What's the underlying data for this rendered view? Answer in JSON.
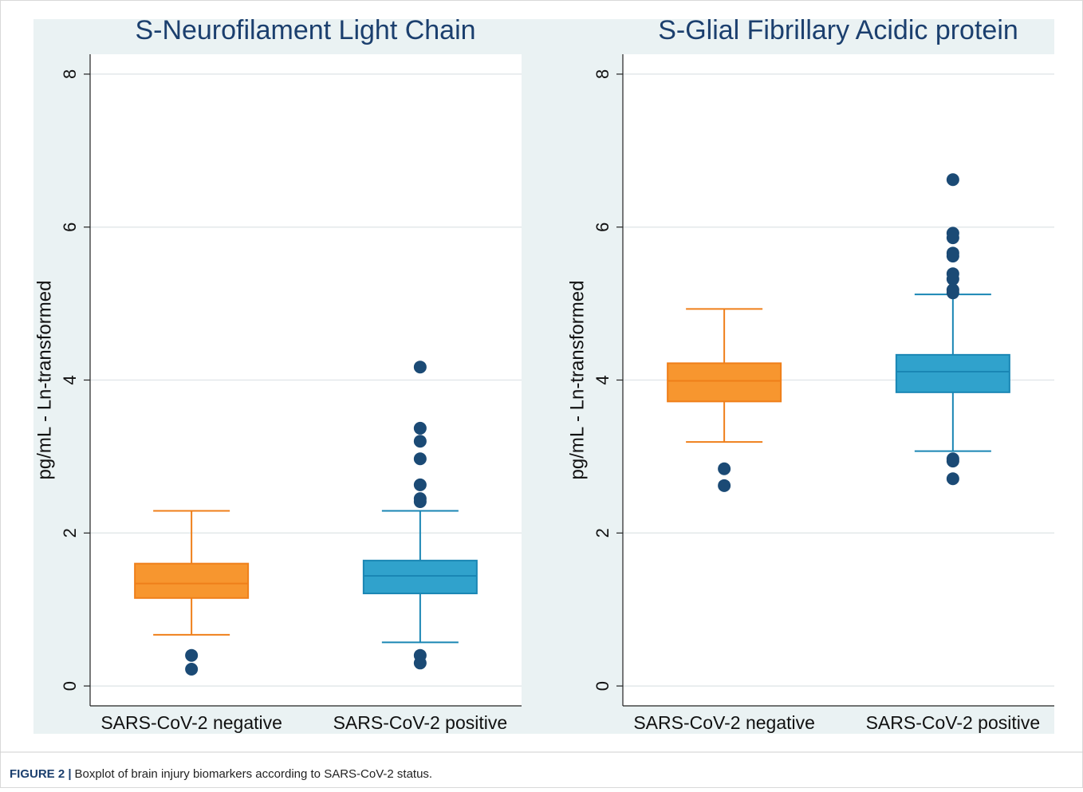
{
  "chart_data": [
    {
      "type": "box",
      "title": "S-Neurofilament Light Chain",
      "ylabel": "pg/mL - Ln-transformed",
      "categories": [
        "SARS-CoV-2 negative",
        "SARS-CoV-2 positive"
      ],
      "ylim": [
        -0.26,
        8.26
      ],
      "yticks": [
        0,
        2,
        4,
        6,
        8
      ],
      "grid": true,
      "outlier_color": "#1b4a75",
      "boxes": [
        {
          "color": "#f7962f",
          "edge": "#ef7f1a",
          "whisker_low": 0.67,
          "q1": 1.15,
          "median": 1.34,
          "q3": 1.6,
          "whisker_high": 2.29,
          "outliers": [
            0.4,
            0.22
          ]
        },
        {
          "color": "#30a2cc",
          "edge": "#1a86b4",
          "whisker_low": 0.57,
          "q1": 1.21,
          "median": 1.44,
          "q3": 1.64,
          "whisker_high": 2.29,
          "outliers": [
            4.17,
            3.37,
            3.2,
            2.97,
            2.63,
            2.45,
            2.41,
            0.4,
            0.3
          ]
        }
      ]
    },
    {
      "type": "box",
      "title": "S-Glial Fibrillary Acidic protein",
      "ylabel": "pg/mL - Ln-transformed",
      "categories": [
        "SARS-CoV-2 negative",
        "SARS-CoV-2 positive"
      ],
      "ylim": [
        -0.26,
        8.26
      ],
      "yticks": [
        0,
        2,
        4,
        6,
        8
      ],
      "grid": true,
      "outlier_color": "#1b4a75",
      "boxes": [
        {
          "color": "#f7962f",
          "edge": "#ef7f1a",
          "whisker_low": 3.19,
          "q1": 3.72,
          "median": 3.99,
          "q3": 4.22,
          "whisker_high": 4.93,
          "outliers": [
            2.84,
            2.62
          ]
        },
        {
          "color": "#30a2cc",
          "edge": "#1a86b4",
          "whisker_low": 3.07,
          "q1": 3.84,
          "median": 4.11,
          "q3": 4.33,
          "whisker_high": 5.12,
          "outliers": [
            6.62,
            5.92,
            5.86,
            5.66,
            5.62,
            5.39,
            5.32,
            5.18,
            5.14,
            2.97,
            2.94,
            2.71
          ]
        }
      ]
    }
  ],
  "caption": {
    "label": "FIGURE 2 |",
    "text": "Boxplot of brain injury biomarkers according to SARS-CoV-2 status."
  }
}
